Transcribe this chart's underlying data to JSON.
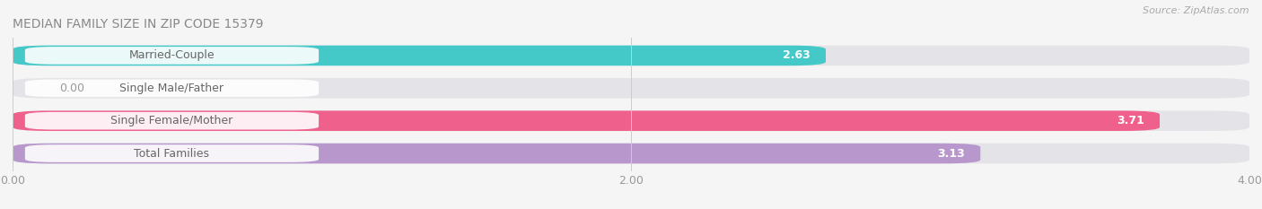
{
  "title": "MEDIAN FAMILY SIZE IN ZIP CODE 15379",
  "source": "Source: ZipAtlas.com",
  "categories": [
    "Married-Couple",
    "Single Male/Father",
    "Single Female/Mother",
    "Total Families"
  ],
  "values": [
    2.63,
    0.0,
    3.71,
    3.13
  ],
  "bar_colors": [
    "#45c8c8",
    "#aab4e8",
    "#f0608c",
    "#b898cc"
  ],
  "xlim": [
    0,
    4.0
  ],
  "xticks": [
    0.0,
    2.0,
    4.0
  ],
  "xtick_labels": [
    "0.00",
    "2.00",
    "4.00"
  ],
  "bar_height": 0.62,
  "background_color": "#f5f5f5",
  "bar_bg_color": "#e4e4e8",
  "label_box_color": "#ffffff",
  "label_text_color": "#666666",
  "value_color_white": "#ffffff",
  "value_color_dark": "#999999",
  "title_color": "#888888",
  "source_color": "#aaaaaa",
  "title_fontsize": 10,
  "label_fontsize": 9,
  "value_fontsize": 9,
  "source_fontsize": 8,
  "tick_fontsize": 9
}
